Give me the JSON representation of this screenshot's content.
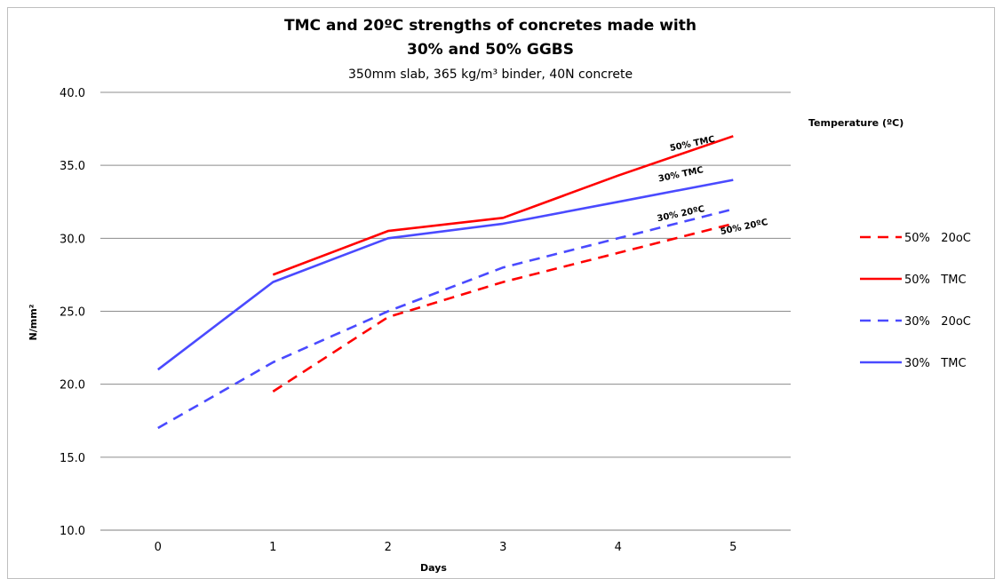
{
  "chart_data": {
    "type": "line",
    "title_line1": "TMC and 20ºC strengths of concretes made with",
    "title_line2": "30% and 50% GGBS",
    "subtitle": "350mm slab, 365 kg/m³ binder, 40N concrete",
    "xlabel": "Days",
    "ylabel": "N/mm²",
    "x": [
      0,
      1,
      2,
      3,
      4,
      5
    ],
    "x_tick_labels": [
      "0",
      "1",
      "2",
      "3",
      "4",
      "5"
    ],
    "ylim": [
      10,
      40
    ],
    "y_ticks": [
      10,
      15,
      20,
      25,
      30,
      35,
      40
    ],
    "y_tick_labels": [
      "10.0",
      "15.0",
      "20.0",
      "25.0",
      "30.0",
      "35.0",
      "40.0"
    ],
    "grid": "horizontal",
    "legend_title": "Temperature (ºC)",
    "legend_position": "right",
    "series": [
      {
        "name": "50%   20oC",
        "color": "#ff0000",
        "dash": "dashed",
        "values": [
          null,
          19.5,
          24.6,
          27.0,
          29.0,
          31.0
        ]
      },
      {
        "name": "50%   TMC",
        "color": "#ff0000",
        "dash": "solid",
        "values": [
          null,
          27.5,
          30.5,
          31.4,
          34.3,
          37.0
        ]
      },
      {
        "name": "30%   20oC",
        "color": "#4a4aff",
        "dash": "dashed",
        "values": [
          17.0,
          21.5,
          25.0,
          28.0,
          30.0,
          32.0
        ]
      },
      {
        "name": "30%   TMC",
        "color": "#4a4aff",
        "dash": "solid",
        "values": [
          21.0,
          27.0,
          30.0,
          31.0,
          32.5,
          34.0
        ]
      }
    ],
    "annotations": [
      {
        "text": "50%   TMC",
        "x": 4.65,
        "y": 36.3
      },
      {
        "text": "30%   TMC",
        "x": 4.55,
        "y": 34.2
      },
      {
        "text": "30%  20ºC",
        "x": 4.55,
        "y": 31.5
      },
      {
        "text": "50%  20ºC",
        "x": 5.1,
        "y": 30.6
      }
    ]
  }
}
